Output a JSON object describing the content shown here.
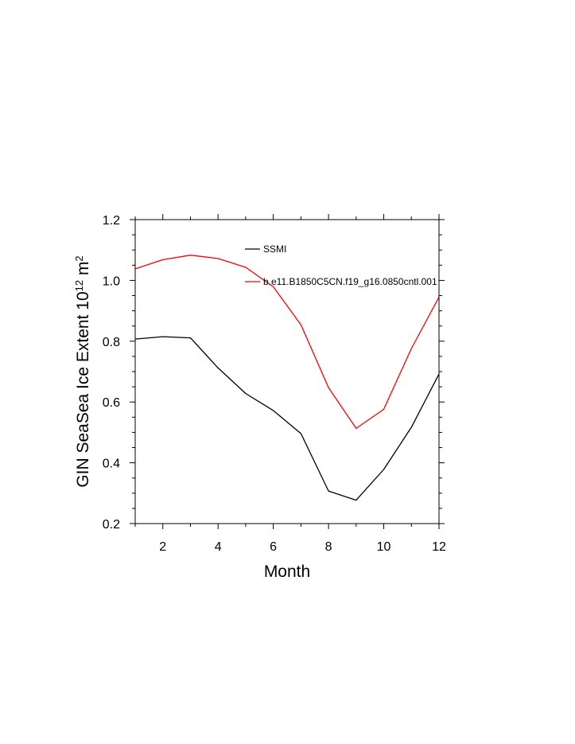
{
  "chart_data": {
    "type": "line",
    "x": [
      1,
      2,
      3,
      4,
      5,
      6,
      7,
      8,
      9,
      10,
      11,
      12
    ],
    "xlim": [
      1,
      12
    ],
    "ylim": [
      0.2,
      1.2
    ],
    "xticks": [
      2,
      4,
      6,
      8,
      10,
      12
    ],
    "xtick_labels": [
      "2",
      "4",
      "6",
      "8",
      "10",
      "12"
    ],
    "yticks": [
      0.2,
      0.4,
      0.6,
      0.8,
      1.0,
      1.2
    ],
    "ytick_labels": [
      "0.2",
      "0.4",
      "0.6",
      "0.8",
      "1.0",
      "1.2"
    ],
    "xlabel": "Month",
    "ylabel": {
      "base": "GIN SeaSea Ice Extent 10",
      "exp1": "12",
      "unit": " m",
      "exp2": "2"
    },
    "grid": false,
    "legend_position": "top-right",
    "series": [
      {
        "name": "SSMI",
        "color": "#000000",
        "values": [
          0.807,
          0.815,
          0.811,
          0.712,
          0.628,
          0.572,
          0.496,
          0.307,
          0.277,
          0.378,
          0.517,
          0.692
        ]
      },
      {
        "name": "b.e11.B1850C5CN.f19_g16.0850cntl.001",
        "color": "#ff0000",
        "values": [
          1.038,
          1.068,
          1.083,
          1.072,
          1.043,
          0.979,
          0.854,
          0.647,
          0.513,
          0.576,
          0.776,
          0.945
        ]
      }
    ]
  }
}
